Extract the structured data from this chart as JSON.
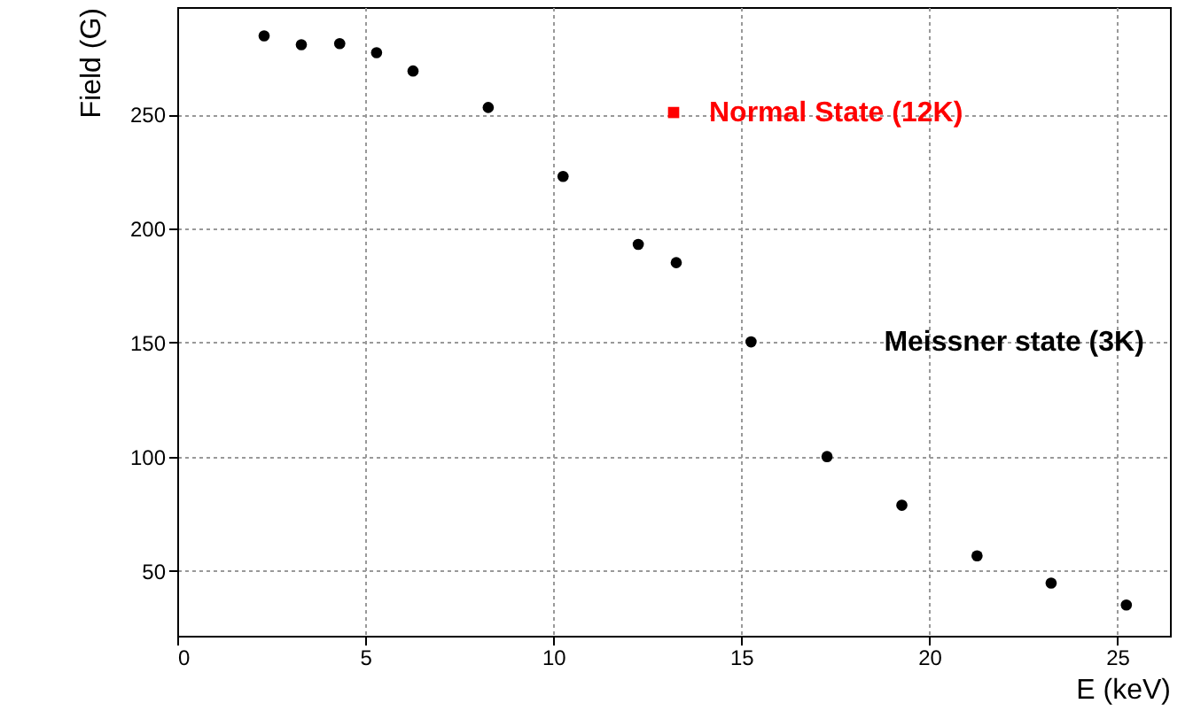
{
  "chart_data": {
    "type": "scatter",
    "xlabel": "E (keV)",
    "ylabel": "Field (G)",
    "xlim": [
      0,
      26.4
    ],
    "ylim": [
      21.5,
      297
    ],
    "xticks": [
      0,
      5,
      10,
      15,
      20,
      25
    ],
    "yticks": [
      50,
      100,
      150,
      200,
      250
    ],
    "grid": true,
    "series": [
      {
        "name": "Meissner state (3K)",
        "color": "#000000",
        "marker": "circle",
        "x": [
          2.31,
          3.3,
          4.32,
          5.3,
          6.27,
          8.27,
          10.26,
          12.26,
          13.27,
          15.26,
          17.28,
          19.27,
          21.27,
          23.24,
          25.24
        ],
        "values": [
          284.4,
          280.5,
          281,
          277,
          269,
          253,
          222.8,
          193,
          185,
          150.3,
          100,
          78.7,
          56.5,
          44.6,
          35
        ]
      },
      {
        "name": "Normal State (12K)",
        "color": "#ff0000",
        "marker": "square",
        "x": [
          13.2
        ],
        "values": [
          250.8
        ]
      }
    ]
  }
}
